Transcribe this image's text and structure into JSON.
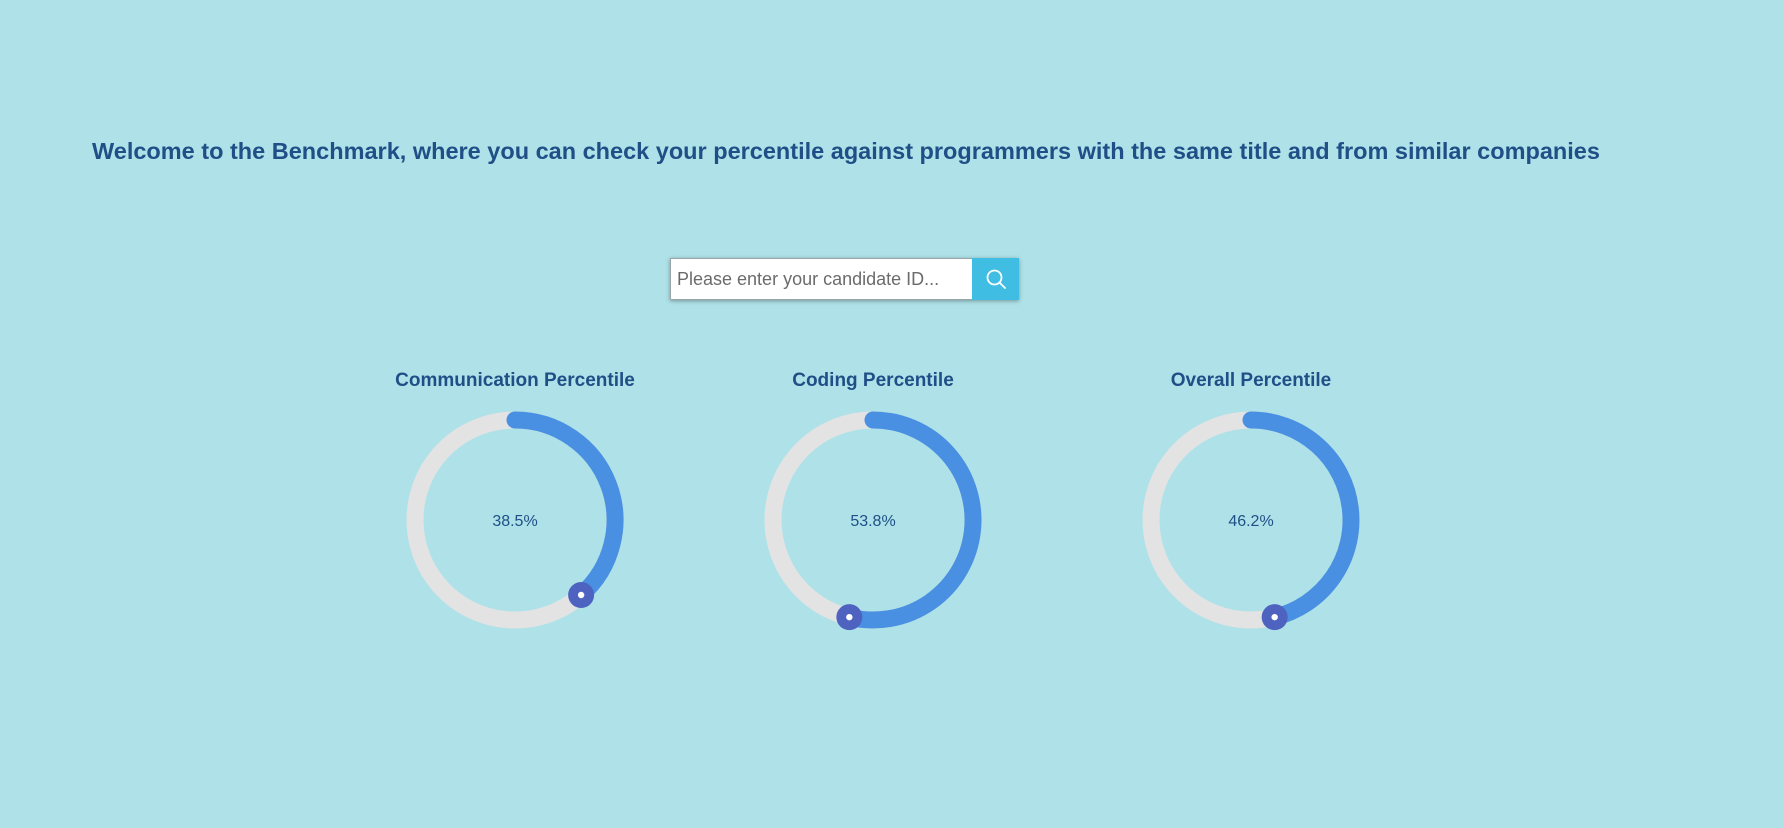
{
  "header": {
    "title": "Welcome to the Benchmark, where you can check your percentile against programmers with the same title and from similar companies"
  },
  "search": {
    "placeholder": "Please enter your candidate ID...",
    "value": "",
    "button_icon": "search-icon"
  },
  "colors": {
    "background": "#aee2e8",
    "text": "#1f4f86",
    "track": "#e3e3e3",
    "progress": "#4a90e2",
    "handle": "#4e62c0",
    "search_button": "#3fbde2"
  },
  "gauges": [
    {
      "title": "Communication Percentile",
      "label": "38.5%",
      "value": 38.5
    },
    {
      "title": "Coding Percentile",
      "label": "53.8%",
      "value": 53.8
    },
    {
      "title": "Overall Percentile",
      "label": "46.2%",
      "value": 46.2
    }
  ]
}
